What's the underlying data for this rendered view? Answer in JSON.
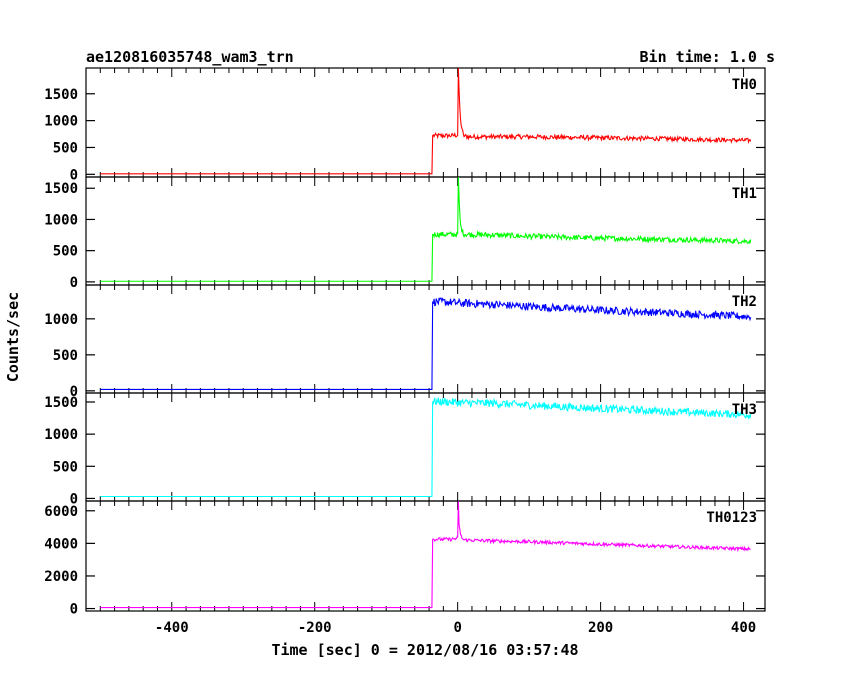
{
  "chart_data": {
    "type": "line",
    "title": "ae120816035748_wam3_trn",
    "subtitle": "Bin time: 1.0 s",
    "xlabel": "Time [sec] 0 = 2012/08/16 03:57:48",
    "ylabel": "Counts/sec",
    "xlim": [
      -520,
      430
    ],
    "x_ticks": [
      -400,
      -200,
      0,
      200,
      400
    ],
    "grid": false,
    "legend": "none",
    "panels": [
      {
        "name": "TH0",
        "color": "#ff0000",
        "ylim": [
          -50,
          1980
        ],
        "y_ticks": [
          0,
          500,
          1000,
          1500
        ],
        "x": [
          -500,
          -36,
          -35,
          -10,
          0,
          1,
          2,
          4,
          8,
          15,
          50,
          100,
          200,
          300,
          410
        ],
        "y": [
          10,
          10,
          720,
          720,
          730,
          1980,
          1500,
          1000,
          720,
          700,
          700,
          700,
          680,
          660,
          630
        ]
      },
      {
        "name": "TH1",
        "color": "#00ff00",
        "ylim": [
          -50,
          1680
        ],
        "y_ticks": [
          0,
          500,
          1000,
          1500
        ],
        "x": [
          -500,
          -36,
          -35,
          -10,
          0,
          1,
          2,
          4,
          8,
          15,
          50,
          100,
          200,
          300,
          410
        ],
        "y": [
          10,
          10,
          760,
          760,
          760,
          1650,
          1300,
          900,
          770,
          760,
          750,
          730,
          700,
          680,
          650
        ]
      },
      {
        "name": "TH2",
        "color": "#0000ff",
        "ylim": [
          -30,
          1470
        ],
        "y_ticks": [
          0,
          500,
          1000
        ],
        "x": [
          -500,
          -36,
          -35,
          -10,
          0,
          50,
          100,
          200,
          300,
          410
        ],
        "y": [
          20,
          20,
          1240,
          1230,
          1220,
          1200,
          1170,
          1120,
          1080,
          1030
        ]
      },
      {
        "name": "TH3",
        "color": "#00ffff",
        "ylim": [
          -40,
          1640
        ],
        "y_ticks": [
          0,
          500,
          1000,
          1500
        ],
        "x": [
          -500,
          -36,
          -35,
          -10,
          0,
          50,
          100,
          200,
          300,
          410
        ],
        "y": [
          30,
          30,
          1510,
          1500,
          1490,
          1480,
          1450,
          1400,
          1350,
          1300
        ]
      },
      {
        "name": "TH0123",
        "color": "#ff00ff",
        "ylim": [
          -150,
          6600
        ],
        "y_ticks": [
          0,
          2000,
          4000,
          6000
        ],
        "x": [
          -500,
          -36,
          -35,
          -10,
          0,
          1,
          2,
          4,
          8,
          15,
          50,
          100,
          200,
          300,
          410
        ],
        "y": [
          60,
          60,
          4250,
          4250,
          4300,
          6500,
          5200,
          4500,
          4220,
          4200,
          4150,
          4100,
          3950,
          3800,
          3650
        ]
      }
    ]
  }
}
